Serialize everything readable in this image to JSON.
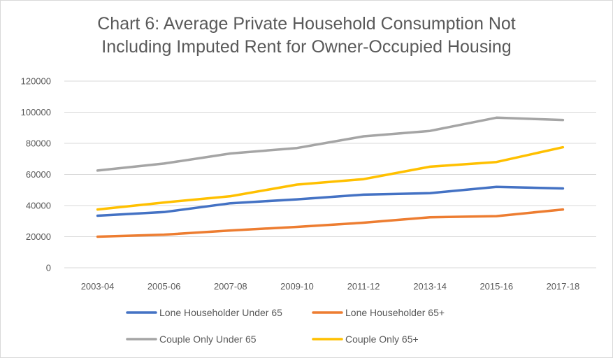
{
  "chart_data": {
    "type": "line",
    "title_line1": "Chart 6: Average Private Household Consumption Not",
    "title_line2": "Including Imputed Rent for Owner-Occupied Housing",
    "xlabel": "",
    "ylabel": "",
    "ylim": [
      0,
      120000
    ],
    "yticks": [
      "0",
      "20000",
      "40000",
      "60000",
      "80000",
      "100000",
      "120000"
    ],
    "categories": [
      "2003-04",
      "2005-06",
      "2007-08",
      "2009-10",
      "2011-12",
      "2013-14",
      "2015-16",
      "2017-18"
    ],
    "grid": true,
    "legend_position": "bottom",
    "series": [
      {
        "name": "Lone Householder Under 65",
        "color": "#4472c4",
        "values": [
          33500,
          35800,
          41500,
          44000,
          47000,
          48000,
          52000,
          51000
        ]
      },
      {
        "name": "Lone Householder 65+",
        "color": "#ed7d31",
        "values": [
          20000,
          21300,
          24000,
          26300,
          29000,
          32500,
          33200,
          37500
        ]
      },
      {
        "name": "Couple Only Under 65",
        "color": "#a5a5a5",
        "values": [
          62500,
          67000,
          73500,
          77000,
          84500,
          88000,
          96500,
          95000
        ]
      },
      {
        "name": "Couple Only 65+",
        "color": "#ffc000",
        "values": [
          37500,
          42000,
          46000,
          53500,
          57000,
          65000,
          68000,
          77500
        ]
      }
    ]
  }
}
